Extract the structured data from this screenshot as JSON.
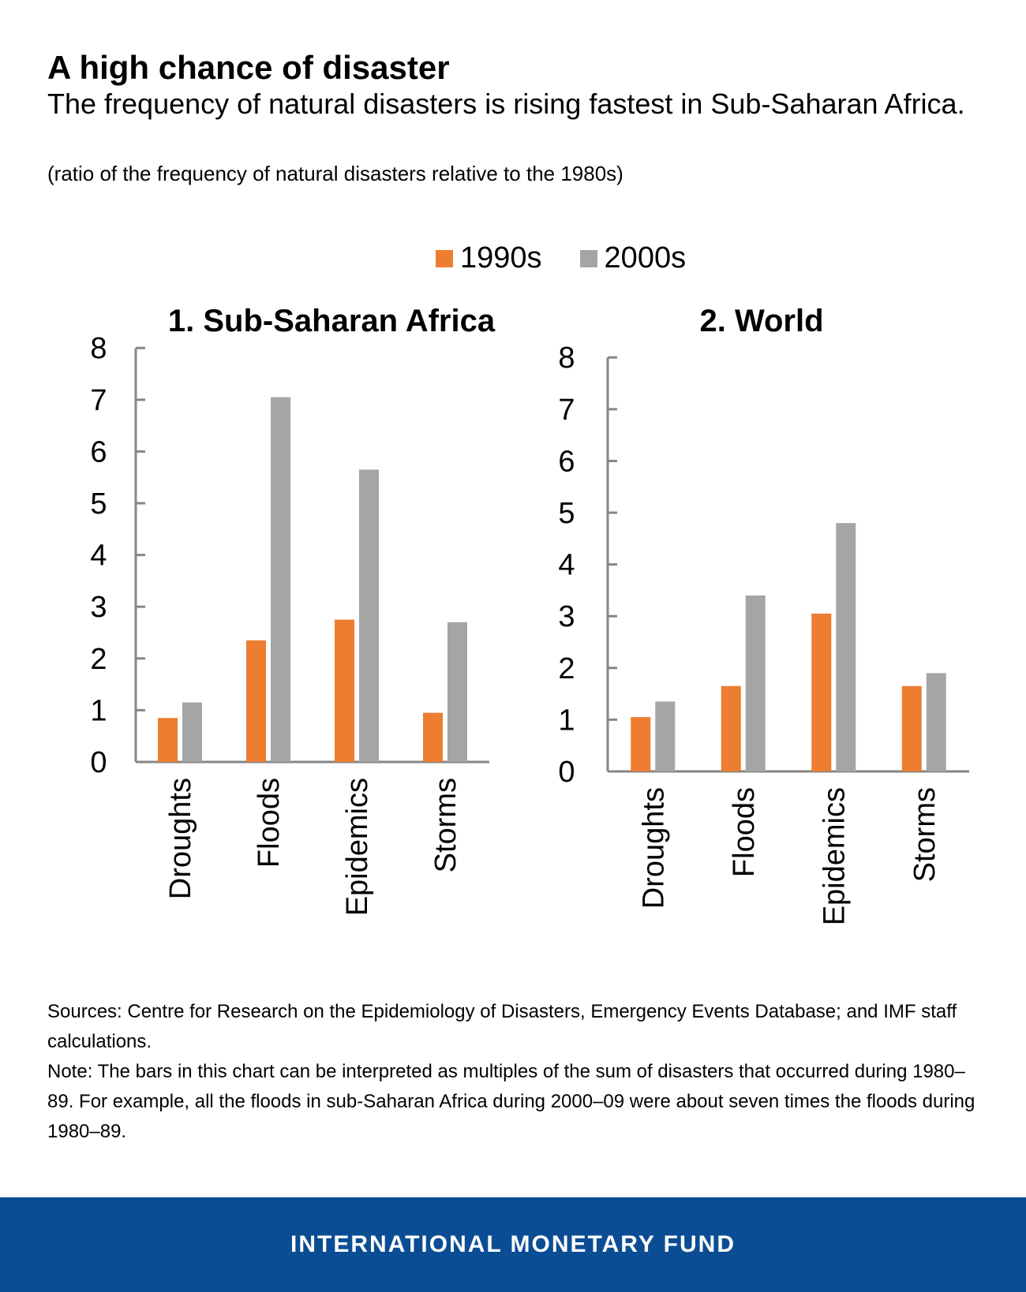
{
  "header": {
    "title": "A high chance of disaster",
    "subtitle": "The frequency of natural disasters is rising fastest in Sub-Saharan Africa.",
    "units": "(ratio of the frequency of natural disasters relative to the 1980s)"
  },
  "legend": [
    {
      "label": "1990s",
      "color": "#ed7d31"
    },
    {
      "label": "2000s",
      "color": "#a5a5a5"
    }
  ],
  "chart_data": [
    {
      "type": "bar",
      "title": "1. Sub-Saharan Africa",
      "categories": [
        "Droughts",
        "Floods",
        "Epidemics",
        "Storms"
      ],
      "series": [
        {
          "name": "1990s",
          "values": [
            0.85,
            2.35,
            2.75,
            0.95
          ]
        },
        {
          "name": "2000s",
          "values": [
            1.15,
            7.05,
            5.65,
            2.7
          ]
        }
      ],
      "ylim": [
        0,
        8
      ],
      "yticks": [
        "0",
        "1",
        "2",
        "3",
        "4",
        "5",
        "6",
        "7",
        "8"
      ],
      "xlabel": "",
      "ylabel": ""
    },
    {
      "type": "bar",
      "title": "2. World",
      "categories": [
        "Droughts",
        "Floods",
        "Epidemics",
        "Storms"
      ],
      "series": [
        {
          "name": "1990s",
          "values": [
            1.05,
            1.65,
            3.05,
            1.65
          ]
        },
        {
          "name": "2000s",
          "values": [
            1.35,
            3.4,
            4.8,
            1.9
          ]
        }
      ],
      "ylim": [
        0,
        8
      ],
      "yticks": [
        "0",
        "1",
        "2",
        "3",
        "4",
        "5",
        "6",
        "7",
        "8"
      ],
      "xlabel": "",
      "ylabel": ""
    }
  ],
  "notes": {
    "sources": "Sources: Centre for Research on the Epidemiology of Disasters, Emergency Events Database; and IMF staff calculations.",
    "note": "Note: The bars in this chart can be interpreted as multiples of the sum of disasters that occurred during 1980–89. For example, all the floods in sub-Saharan Africa during 2000–09 were about seven times the floods during 1980–89."
  },
  "footer": {
    "org": "INTERNATIONAL MONETARY FUND",
    "background": "#0b4d94"
  }
}
